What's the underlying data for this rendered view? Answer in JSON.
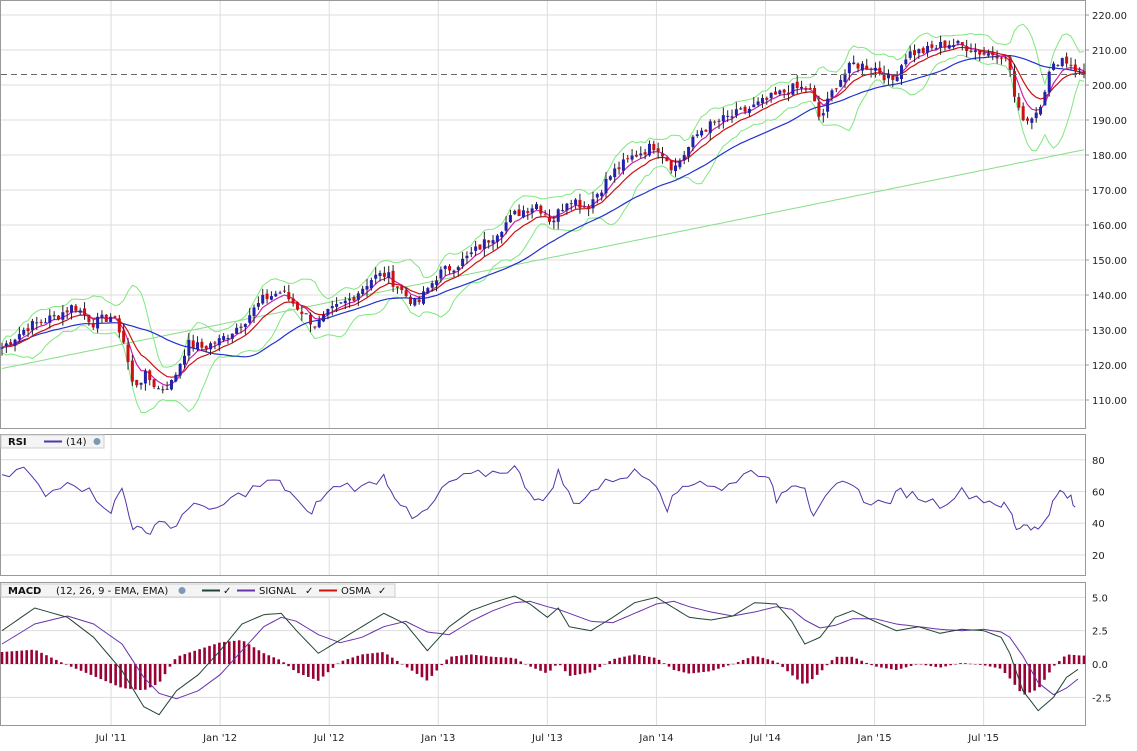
{
  "colors": {
    "up_candle": "#2222aa",
    "down_candle": "#cc1111",
    "bollinger": "#7ee87e",
    "sma_long": "#88dd88",
    "ema_short": "#cc1111",
    "ema_mid": "#cc22aa",
    "sma_mid": "#2233cc",
    "rsi": "#5533aa",
    "macd": "#224433",
    "signal": "#6633aa",
    "osma": "#990033",
    "grid": "#dddddd",
    "frame": "#999999"
  },
  "x_axis": {
    "labels": [
      "Jul '11",
      "Jan '12",
      "Jul '12",
      "Jan '13",
      "Jul '13",
      "Jan '14",
      "Jul '14",
      "Jan '15",
      "Jul '15"
    ]
  },
  "price_axis": {
    "labels": [
      "220.00",
      "210.00",
      "200.00",
      "190.00",
      "180.00",
      "170.00",
      "160.00",
      "150.00",
      "140.00",
      "130.00",
      "120.00",
      "110.00"
    ]
  },
  "rsi_panel": {
    "title": "RSI",
    "params": "(14)",
    "axis_labels": [
      "80",
      "60",
      "40",
      "20"
    ]
  },
  "macd_panel": {
    "title": "MACD",
    "params": "(12, 26, 9 - EMA, EMA)",
    "signal_label": "SIGNAL",
    "osma_label": "OSMA",
    "axis_labels": [
      "5.0",
      "2.5",
      "0.0",
      "-2.5"
    ]
  },
  "chart_data": [
    {
      "type": "candlestick",
      "x_range": [
        "2011-01",
        "2015-10"
      ],
      "ylim": [
        102,
        222
      ],
      "reference_level": 203,
      "price_path": [
        [
          2011.0,
          125
        ],
        [
          2011.12,
          131
        ],
        [
          2011.25,
          134
        ],
        [
          2011.33,
          137
        ],
        [
          2011.42,
          132
        ],
        [
          2011.5,
          134
        ],
        [
          2011.55,
          129
        ],
        [
          2011.6,
          114
        ],
        [
          2011.66,
          117
        ],
        [
          2011.72,
          113
        ],
        [
          2011.78,
          115
        ],
        [
          2011.85,
          126
        ],
        [
          2011.92,
          125
        ],
        [
          2012.0,
          127
        ],
        [
          2012.1,
          132
        ],
        [
          2012.2,
          139
        ],
        [
          2012.28,
          141
        ],
        [
          2012.38,
          135
        ],
        [
          2012.44,
          131
        ],
        [
          2012.5,
          135
        ],
        [
          2012.6,
          139
        ],
        [
          2012.7,
          145
        ],
        [
          2012.76,
          146
        ],
        [
          2012.85,
          140
        ],
        [
          2012.9,
          137
        ],
        [
          2013.0,
          146
        ],
        [
          2013.12,
          150
        ],
        [
          2013.25,
          157
        ],
        [
          2013.35,
          163
        ],
        [
          2013.45,
          166
        ],
        [
          2013.52,
          161
        ],
        [
          2013.6,
          168
        ],
        [
          2013.68,
          165
        ],
        [
          2013.8,
          175
        ],
        [
          2013.9,
          180
        ],
        [
          2014.0,
          183
        ],
        [
          2014.08,
          176
        ],
        [
          2014.2,
          187
        ],
        [
          2014.3,
          190
        ],
        [
          2014.42,
          193
        ],
        [
          2014.55,
          197
        ],
        [
          2014.62,
          199
        ],
        [
          2014.7,
          199
        ],
        [
          2014.75,
          190
        ],
        [
          2014.82,
          200
        ],
        [
          2014.9,
          206
        ],
        [
          2015.0,
          205
        ],
        [
          2015.08,
          201
        ],
        [
          2015.15,
          209
        ],
        [
          2015.25,
          210
        ],
        [
          2015.33,
          212
        ],
        [
          2015.42,
          211
        ],
        [
          2015.5,
          209
        ],
        [
          2015.58,
          209
        ],
        [
          2015.62,
          205
        ],
        [
          2015.65,
          193
        ],
        [
          2015.7,
          190
        ],
        [
          2015.75,
          193
        ],
        [
          2015.8,
          203
        ],
        [
          2015.85,
          208
        ],
        [
          2015.9,
          206
        ],
        [
          2015.95,
          203
        ]
      ],
      "overlays": [
        "Bollinger Bands",
        "EMA short",
        "EMA mid",
        "SMA 50",
        "SMA 200"
      ]
    },
    {
      "type": "line",
      "name": "RSI",
      "ylim": [
        8,
        95
      ],
      "points": [
        [
          2011.0,
          68
        ],
        [
          2011.1,
          75
        ],
        [
          2011.2,
          57
        ],
        [
          2011.3,
          68
        ],
        [
          2011.4,
          60
        ],
        [
          2011.5,
          48
        ],
        [
          2011.55,
          62
        ],
        [
          2011.6,
          38
        ],
        [
          2011.66,
          33
        ],
        [
          2011.72,
          42
        ],
        [
          2011.8,
          37
        ],
        [
          2011.88,
          55
        ],
        [
          2011.95,
          46
        ],
        [
          2012.05,
          55
        ],
        [
          2012.15,
          62
        ],
        [
          2012.25,
          67
        ],
        [
          2012.32,
          60
        ],
        [
          2012.4,
          45
        ],
        [
          2012.46,
          55
        ],
        [
          2012.55,
          65
        ],
        [
          2012.65,
          62
        ],
        [
          2012.75,
          70
        ],
        [
          2012.8,
          58
        ],
        [
          2012.88,
          42
        ],
        [
          2012.95,
          48
        ],
        [
          2013.05,
          66
        ],
        [
          2013.15,
          70
        ],
        [
          2013.25,
          72
        ],
        [
          2013.35,
          75
        ],
        [
          2013.42,
          60
        ],
        [
          2013.48,
          52
        ],
        [
          2013.55,
          72
        ],
        [
          2013.62,
          52
        ],
        [
          2013.7,
          60
        ],
        [
          2013.8,
          68
        ],
        [
          2013.9,
          72
        ],
        [
          2014.0,
          66
        ],
        [
          2014.05,
          50
        ],
        [
          2014.12,
          64
        ],
        [
          2014.2,
          67
        ],
        [
          2014.3,
          60
        ],
        [
          2014.4,
          72
        ],
        [
          2014.5,
          72
        ],
        [
          2014.55,
          55
        ],
        [
          2014.62,
          66
        ],
        [
          2014.68,
          64
        ],
        [
          2014.72,
          42
        ],
        [
          2014.8,
          60
        ],
        [
          2014.88,
          68
        ],
        [
          2014.95,
          55
        ],
        [
          2015.05,
          52
        ],
        [
          2015.12,
          60
        ],
        [
          2015.2,
          57
        ],
        [
          2015.3,
          52
        ],
        [
          2015.4,
          60
        ],
        [
          2015.5,
          55
        ],
        [
          2015.58,
          52
        ],
        [
          2015.62,
          48
        ],
        [
          2015.65,
          37
        ],
        [
          2015.7,
          40
        ],
        [
          2015.75,
          35
        ],
        [
          2015.8,
          48
        ],
        [
          2015.85,
          60
        ],
        [
          2015.9,
          55
        ],
        [
          2015.93,
          46
        ]
      ]
    },
    {
      "type": "line",
      "name": "MACD",
      "ylim": [
        -4.5,
        6
      ],
      "series": [
        {
          "name": "MACD",
          "points": [
            [
              2011.0,
              2.5
            ],
            [
              2011.15,
              4.2
            ],
            [
              2011.3,
              3.5
            ],
            [
              2011.42,
              2.0
            ],
            [
              2011.55,
              -0.5
            ],
            [
              2011.65,
              -3.2
            ],
            [
              2011.72,
              -3.8
            ],
            [
              2011.8,
              -2.0
            ],
            [
              2011.9,
              -0.8
            ],
            [
              2012.0,
              1.0
            ],
            [
              2012.1,
              3.0
            ],
            [
              2012.2,
              3.7
            ],
            [
              2012.28,
              3.8
            ],
            [
              2012.35,
              2.5
            ],
            [
              2012.45,
              0.8
            ],
            [
              2012.55,
              1.8
            ],
            [
              2012.65,
              2.8
            ],
            [
              2012.75,
              3.8
            ],
            [
              2012.85,
              3.0
            ],
            [
              2012.95,
              1.0
            ],
            [
              2013.05,
              2.8
            ],
            [
              2013.15,
              4.0
            ],
            [
              2013.25,
              4.6
            ],
            [
              2013.35,
              5.1
            ],
            [
              2013.42,
              4.5
            ],
            [
              2013.5,
              3.5
            ],
            [
              2013.55,
              4.2
            ],
            [
              2013.6,
              2.8
            ],
            [
              2013.7,
              2.5
            ],
            [
              2013.8,
              3.5
            ],
            [
              2013.9,
              4.6
            ],
            [
              2014.0,
              5.0
            ],
            [
              2014.08,
              4.2
            ],
            [
              2014.15,
              3.5
            ],
            [
              2014.25,
              3.3
            ],
            [
              2014.35,
              3.6
            ],
            [
              2014.45,
              4.6
            ],
            [
              2014.55,
              4.5
            ],
            [
              2014.62,
              3.2
            ],
            [
              2014.68,
              1.5
            ],
            [
              2014.75,
              2.0
            ],
            [
              2014.82,
              3.5
            ],
            [
              2014.9,
              4.0
            ],
            [
              2015.0,
              3.2
            ],
            [
              2015.1,
              2.5
            ],
            [
              2015.2,
              2.8
            ],
            [
              2015.3,
              2.3
            ],
            [
              2015.4,
              2.6
            ],
            [
              2015.5,
              2.5
            ],
            [
              2015.58,
              2.0
            ],
            [
              2015.62,
              0.8
            ],
            [
              2015.68,
              -2.0
            ],
            [
              2015.75,
              -3.5
            ],
            [
              2015.82,
              -2.5
            ],
            [
              2015.88,
              -1.0
            ],
            [
              2015.95,
              -0.2
            ]
          ]
        },
        {
          "name": "SIGNAL",
          "points": [
            [
              2011.0,
              1.5
            ],
            [
              2011.15,
              3.0
            ],
            [
              2011.3,
              3.6
            ],
            [
              2011.42,
              3.0
            ],
            [
              2011.55,
              1.5
            ],
            [
              2011.65,
              -1.0
            ],
            [
              2011.72,
              -2.2
            ],
            [
              2011.8,
              -2.6
            ],
            [
              2011.9,
              -2.0
            ],
            [
              2012.0,
              -0.8
            ],
            [
              2012.1,
              1.0
            ],
            [
              2012.2,
              2.8
            ],
            [
              2012.28,
              3.5
            ],
            [
              2012.35,
              3.2
            ],
            [
              2012.45,
              2.2
            ],
            [
              2012.55,
              1.6
            ],
            [
              2012.65,
              2.0
            ],
            [
              2012.75,
              2.8
            ],
            [
              2012.85,
              3.2
            ],
            [
              2012.95,
              2.4
            ],
            [
              2013.05,
              2.2
            ],
            [
              2013.15,
              3.2
            ],
            [
              2013.25,
              4.0
            ],
            [
              2013.35,
              4.6
            ],
            [
              2013.42,
              4.7
            ],
            [
              2013.5,
              4.3
            ],
            [
              2013.55,
              4.1
            ],
            [
              2013.6,
              3.8
            ],
            [
              2013.7,
              3.2
            ],
            [
              2013.8,
              3.1
            ],
            [
              2013.9,
              3.8
            ],
            [
              2014.0,
              4.5
            ],
            [
              2014.08,
              4.7
            ],
            [
              2014.15,
              4.3
            ],
            [
              2014.25,
              3.9
            ],
            [
              2014.35,
              3.6
            ],
            [
              2014.45,
              3.9
            ],
            [
              2014.55,
              4.3
            ],
            [
              2014.62,
              4.1
            ],
            [
              2014.68,
              3.3
            ],
            [
              2014.75,
              2.7
            ],
            [
              2014.82,
              2.9
            ],
            [
              2014.9,
              3.4
            ],
            [
              2015.0,
              3.4
            ],
            [
              2015.1,
              3.0
            ],
            [
              2015.2,
              2.8
            ],
            [
              2015.3,
              2.6
            ],
            [
              2015.4,
              2.5
            ],
            [
              2015.5,
              2.6
            ],
            [
              2015.58,
              2.4
            ],
            [
              2015.62,
              2.0
            ],
            [
              2015.68,
              0.6
            ],
            [
              2015.75,
              -1.4
            ],
            [
              2015.82,
              -2.3
            ],
            [
              2015.88,
              -1.8
            ],
            [
              2015.95,
              -0.9
            ]
          ]
        },
        {
          "name": "OSMA",
          "bars": true
        }
      ]
    }
  ]
}
